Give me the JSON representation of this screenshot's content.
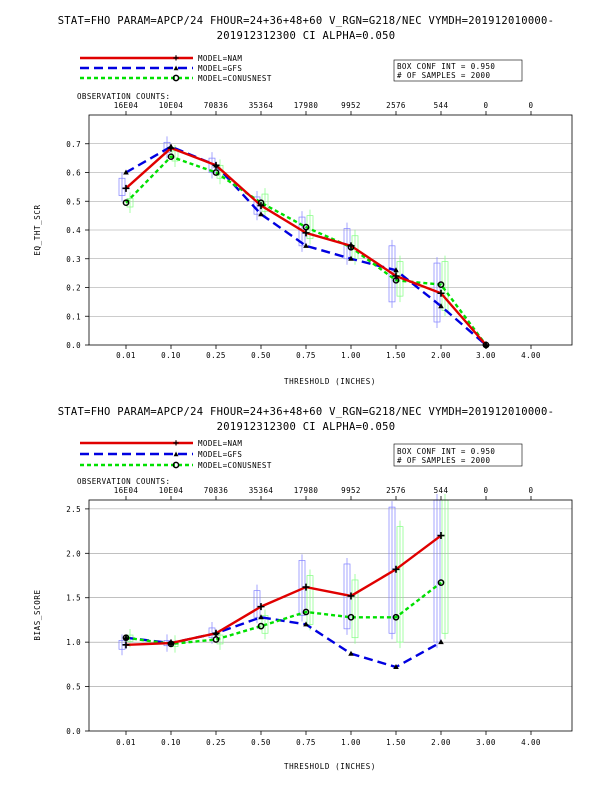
{
  "colors": {
    "nam": "#e00000",
    "gfs": "#0000e0",
    "conus": "#00e000",
    "grid": "#9a9a9a",
    "box_nam": "#8080ff",
    "box_conus": "#80ff80"
  },
  "charts": [
    {
      "title_line1": "STAT=FHO PARAM=APCP/24 FHOUR=24+36+48+60 V_RGN=G218/NEC VYMDH=201912010000-",
      "title_line2": "201912312300 CI ALPHA=0.050",
      "legend": {
        "nam": "MODEL=NAM",
        "gfs": "MODEL=GFS",
        "conus": "MODEL=CONUSNEST"
      },
      "info_box": {
        "line1": "BOX CONF INT = 0.950",
        "line2": "# OF SAMPLES =  2000"
      },
      "obs_label": "OBSERVATION COUNTS:",
      "obs_counts": [
        "16E04",
        "10E04",
        "70836",
        "35364",
        "17980",
        "9952",
        "2576",
        "544",
        "0",
        "0"
      ]
    },
    {
      "title_line1": "STAT=FHO PARAM=APCP/24 FHOUR=24+36+48+60 V_RGN=G218/NEC VYMDH=201912010000-",
      "title_line2": "201912312300 CI ALPHA=0.050",
      "legend": {
        "nam": "MODEL=NAM",
        "gfs": "MODEL=GFS",
        "conus": "MODEL=CONUSNEST"
      },
      "info_box": {
        "line1": "BOX CONF INT = 0.950",
        "line2": "# OF SAMPLES =  2000"
      },
      "obs_label": "OBSERVATION COUNTS:",
      "obs_counts": [
        "16E04",
        "10E04",
        "70836",
        "35364",
        "17980",
        "9952",
        "2576",
        "544",
        "0",
        "0"
      ]
    }
  ],
  "chart_data": [
    {
      "type": "line",
      "xlabel": "THRESHOLD (INCHES)",
      "ylabel": "EQ_THT_SCR",
      "categories": [
        "0.01",
        "0.10",
        "0.25",
        "0.50",
        "0.75",
        "1.00",
        "1.50",
        "2.00",
        "3.00",
        "4.00"
      ],
      "ylim": [
        0,
        0.8
      ],
      "yticks": [
        "0.0",
        "0.1",
        "0.2",
        "0.3",
        "0.4",
        "0.5",
        "0.6",
        "0.7"
      ],
      "grid": true,
      "series": [
        {
          "name": "MODEL=NAM",
          "values": [
            0.545,
            0.685,
            0.625,
            0.485,
            0.39,
            0.345,
            0.24,
            0.18,
            0.0,
            null
          ]
        },
        {
          "name": "MODEL=GFS",
          "values": [
            0.6,
            0.69,
            0.625,
            0.455,
            0.345,
            0.3,
            0.26,
            0.135,
            0.0,
            null
          ]
        },
        {
          "name": "MODEL=CONUSNEST",
          "values": [
            0.495,
            0.655,
            0.6,
            0.495,
            0.41,
            0.34,
            0.225,
            0.21,
            0.0,
            null
          ]
        }
      ],
      "boxes": {
        "nam": [
          [
            0.52,
            0.58
          ],
          [
            0.67,
            0.705
          ],
          [
            0.6,
            0.65
          ],
          [
            0.455,
            0.515
          ],
          [
            0.345,
            0.445
          ],
          [
            0.3,
            0.405
          ],
          [
            0.15,
            0.345
          ],
          [
            0.08,
            0.285
          ],
          null,
          null
        ],
        "conus": [
          [
            0.48,
            0.51
          ],
          [
            0.64,
            0.675
          ],
          [
            0.58,
            0.625
          ],
          [
            0.465,
            0.525
          ],
          [
            0.37,
            0.45
          ],
          [
            0.3,
            0.38
          ],
          [
            0.17,
            0.29
          ],
          [
            0.12,
            0.29
          ],
          null,
          null
        ]
      }
    },
    {
      "type": "line",
      "xlabel": "THRESHOLD (INCHES)",
      "ylabel": "BIAS_SCORE",
      "categories": [
        "0.01",
        "0.10",
        "0.25",
        "0.50",
        "0.75",
        "1.00",
        "1.50",
        "2.00",
        "3.00",
        "4.00"
      ],
      "ylim": [
        0,
        2.6
      ],
      "yticks": [
        "0.0",
        "0.5",
        "1.0",
        "1.5",
        "2.0",
        "2.5"
      ],
      "grid": true,
      "series": [
        {
          "name": "MODEL=NAM",
          "values": [
            0.97,
            0.99,
            1.1,
            1.4,
            1.62,
            1.52,
            1.82,
            2.2,
            null,
            null
          ]
        },
        {
          "name": "MODEL=GFS",
          "values": [
            1.05,
            0.99,
            1.1,
            1.28,
            1.2,
            0.87,
            0.72,
            1.0,
            null,
            null
          ]
        },
        {
          "name": "MODEL=CONUSNEST",
          "values": [
            1.05,
            0.98,
            1.03,
            1.18,
            1.34,
            1.28,
            1.28,
            1.67,
            null,
            null
          ]
        }
      ],
      "boxes": {
        "nam": [
          [
            0.92,
            1.02
          ],
          [
            0.96,
            1.02
          ],
          [
            1.05,
            1.16
          ],
          [
            1.28,
            1.58
          ],
          [
            1.3,
            1.92
          ],
          [
            1.15,
            1.88
          ],
          [
            1.1,
            2.52
          ],
          [
            1.0,
            2.6
          ],
          null,
          null
        ],
        "conus": [
          [
            1.01,
            1.08
          ],
          [
            0.95,
            1.01
          ],
          [
            0.98,
            1.08
          ],
          [
            1.1,
            1.3
          ],
          [
            1.2,
            1.75
          ],
          [
            1.05,
            1.7
          ],
          [
            1.0,
            2.3
          ],
          [
            1.1,
            2.6
          ],
          null,
          null
        ]
      }
    }
  ]
}
